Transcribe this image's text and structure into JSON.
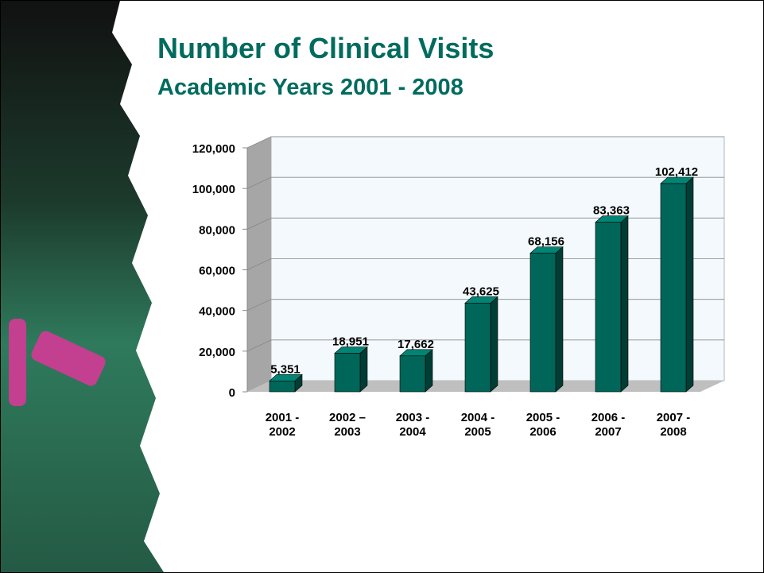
{
  "chart_data": {
    "type": "bar3d",
    "title": "Number of Clinical Visits",
    "subtitle": "Academic Years 2001 - 2008",
    "categories": [
      "2001 - 2002",
      "2002 – 2003",
      "2003 - 2004",
      "2004 - 2005",
      "2005 - 2006",
      "2006 - 2007",
      "2007 - 2008"
    ],
    "values": [
      5351,
      18951,
      17662,
      43625,
      68156,
      83363,
      102412
    ],
    "value_labels": [
      "5,351",
      "18,951",
      "17,662",
      "43,625",
      "68,156",
      "83,363",
      "102,412"
    ],
    "color": "#006659",
    "ylim": [
      0,
      120000
    ],
    "yticks": [
      0,
      {
        "value": 20000,
        "label": "20,000"
      },
      {
        "value": 40000,
        "label": "40,000"
      },
      {
        "value": 60000,
        "label": "60,000"
      },
      {
        "value": 80000,
        "label": "80,000"
      },
      {
        "value": 100000,
        "label": "100,000"
      },
      {
        "value": 120000,
        "label": "120,000"
      }
    ],
    "grid": true
  }
}
